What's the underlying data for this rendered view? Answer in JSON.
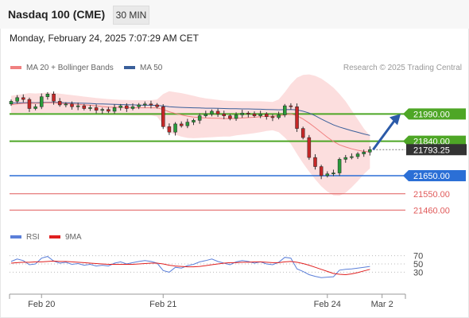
{
  "header": {
    "title": "Nasdaq 100 (CME)",
    "timeframe": "30 MIN"
  },
  "datetime": "Monday, February 24, 2025 7:07:29 AM CET",
  "legend": {
    "bollinger": {
      "label": "MA 20 + Bollinger Bands",
      "color": "#f08080"
    },
    "ma50": {
      "label": "MA 50",
      "color": "#3a5f9a"
    },
    "credit": "Research © 2025 Trading Central"
  },
  "chart_data": [
    {
      "type": "candlestick",
      "title": "",
      "ylim": [
        21400,
        22180
      ],
      "levels": [
        {
          "value": 21990,
          "label": "21990.00",
          "color": "#4ea626",
          "style": "resistance"
        },
        {
          "value": 21840,
          "label": "21840.00",
          "color": "#4ea626",
          "style": "resistance"
        },
        {
          "value": 21793.25,
          "label": "21793.25",
          "color": "#333333",
          "style": "current"
        },
        {
          "value": 21650,
          "label": "21650.00",
          "color": "#2b6fd6",
          "style": "pivot"
        },
        {
          "value": 21550,
          "label": "21550.00",
          "color": "#e05a5a",
          "style": "support"
        },
        {
          "value": 21460,
          "label": "21460.00",
          "color": "#e05a5a",
          "style": "support"
        }
      ],
      "close": [
        22060,
        22080,
        22070,
        22020,
        22030,
        22085,
        22100,
        22060,
        22040,
        22045,
        22030,
        22035,
        22020,
        22025,
        22010,
        22015,
        22005,
        22025,
        22035,
        22020,
        22030,
        22040,
        22045,
        22040,
        22030,
        21920,
        21890,
        21935,
        21925,
        21945,
        21955,
        21980,
        21990,
        22005,
        21990,
        21980,
        21965,
        21985,
        21995,
        21990,
        21980,
        21990,
        21975,
        21970,
        21985,
        22035,
        22030,
        21910,
        21860,
        21750,
        21700,
        21650,
        21660,
        21665,
        21740,
        21750,
        21755,
        21770,
        21780,
        21793.25
      ],
      "ma50": [
        22050,
        22051,
        22052,
        22053,
        22052,
        22053,
        22054,
        22054,
        22053,
        22052,
        22051,
        22050,
        22049,
        22048,
        22046,
        22045,
        22044,
        22043,
        22042,
        22041,
        22040,
        22039,
        22038,
        22038,
        22037,
        22034,
        22030,
        22028,
        22026,
        22025,
        22024,
        22023,
        22022,
        22022,
        22021,
        22020,
        22019,
        22019,
        22018,
        22018,
        22017,
        22016,
        22015,
        22014,
        22013,
        22014,
        22015,
        22012,
        22005,
        21995,
        21980,
        21962,
        21946,
        21930,
        21918,
        21908,
        21898,
        21889,
        21880,
        21872
      ],
      "ma20": [
        22040,
        22045,
        22048,
        22050,
        22049,
        22050,
        22052,
        22051,
        22049,
        22047,
        22045,
        22043,
        22040,
        22038,
        22034,
        22031,
        22028,
        22027,
        22026,
        22025,
        22024,
        22024,
        22024,
        22024,
        22023,
        22015,
        22002,
        21993,
        21985,
        21978,
        21973,
        21970,
        21968,
        21967,
        21966,
        21965,
        21964,
        21966,
        21968,
        21970,
        21972,
        21975,
        21977,
        21978,
        21980,
        21985,
        21990,
        21980,
        21962,
        21940,
        21915,
        21888,
        21862,
        21838,
        21820,
        21808,
        21798,
        21790,
        21784,
        21780
      ],
      "bb_upper": [
        22090,
        22095,
        22100,
        22105,
        22103,
        22105,
        22108,
        22106,
        22102,
        22098,
        22094,
        22090,
        22086,
        22082,
        22078,
        22075,
        22072,
        22070,
        22068,
        22067,
        22066,
        22066,
        22066,
        22066,
        22070,
        22100,
        22115,
        22110,
        22105,
        22098,
        22090,
        22082,
        22076,
        22072,
        22068,
        22064,
        22062,
        22060,
        22060,
        22060,
        22060,
        22060,
        22058,
        22056,
        22070,
        22110,
        22155,
        22190,
        22205,
        22208,
        22200,
        22185,
        22162,
        22135,
        22100,
        22060,
        22010,
        21960,
        21910,
        21870
      ],
      "bb_lower": [
        21990,
        21995,
        21996,
        21995,
        21995,
        21995,
        21996,
        21996,
        21996,
        21996,
        21996,
        21996,
        21994,
        21994,
        21990,
        21987,
        21984,
        21984,
        21984,
        21983,
        21982,
        21982,
        21982,
        21982,
        21976,
        21930,
        21889,
        21876,
        21865,
        21858,
        21856,
        21858,
        21860,
        21862,
        21864,
        21866,
        21866,
        21872,
        21876,
        21880,
        21884,
        21890,
        21896,
        21900,
        21890,
        21860,
        21825,
        21770,
        21719,
        21672,
        21630,
        21591,
        21562,
        21541,
        21540,
        21556,
        21586,
        21620,
        21658,
        21690
      ],
      "forecast_arrow": {
        "from": 21793.25,
        "to": 21990
      }
    },
    {
      "type": "line",
      "title": "RSI",
      "legend": [
        {
          "name": "RSI",
          "color": "#5b7fd9"
        },
        {
          "name": "9MA",
          "color": "#e02020"
        }
      ],
      "ylim": [
        0,
        100
      ],
      "ticks": [
        "70",
        "50",
        "30"
      ],
      "tick_values": [
        70,
        50,
        30
      ],
      "rsi": [
        56,
        62,
        58,
        48,
        50,
        64,
        68,
        57,
        52,
        54,
        49,
        51,
        47,
        49,
        45,
        47,
        45,
        52,
        55,
        50,
        53,
        56,
        58,
        56,
        52,
        34,
        30,
        42,
        40,
        46,
        49,
        55,
        58,
        62,
        56,
        52,
        48,
        55,
        58,
        56,
        52,
        55,
        50,
        48,
        54,
        66,
        64,
        38,
        32,
        24,
        20,
        17,
        18,
        19,
        35,
        37,
        38,
        40,
        42,
        44
      ],
      "ma9": [
        52,
        53,
        54,
        54,
        55,
        55,
        56,
        57,
        56,
        56,
        55,
        54,
        53,
        52,
        51,
        50,
        49,
        49,
        49,
        49,
        49,
        50,
        51,
        52,
        52,
        50,
        47,
        45,
        44,
        43,
        43,
        44,
        46,
        48,
        50,
        52,
        53,
        53,
        54,
        54,
        55,
        55,
        54,
        53,
        53,
        55,
        56,
        54,
        51,
        47,
        42,
        37,
        32,
        27,
        25,
        24,
        26,
        29,
        33,
        37
      ]
    }
  ],
  "x_axis": {
    "labels": [
      "Feb 20",
      "Feb 21",
      "Feb 24",
      "Mar 2"
    ],
    "label_index": [
      5,
      25,
      52,
      61
    ]
  }
}
